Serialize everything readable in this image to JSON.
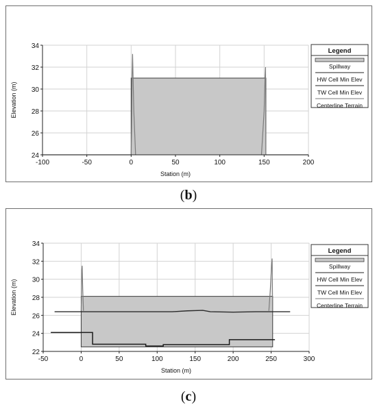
{
  "captions": {
    "b_letter": "b",
    "c_letter": "c"
  },
  "chart_data": [
    {
      "id": "b",
      "type": "line",
      "xlabel": "Station (m)",
      "ylabel": "Elevation (m)",
      "xlim": [
        -100,
        200
      ],
      "ylim": [
        24,
        34
      ],
      "xticks": [
        -100,
        -50,
        0,
        50,
        100,
        150,
        200
      ],
      "yticks": [
        24,
        26,
        28,
        30,
        32,
        34
      ],
      "grid": true,
      "legend": {
        "title": "Legend",
        "placement": "right",
        "entries": [
          "Spillway",
          "HW Cell Min Elev",
          "TW Cell Min Elev",
          "Centerline Terrain"
        ]
      },
      "spillway_polygon": [
        [
          0,
          24
        ],
        [
          0,
          31
        ],
        [
          152,
          31
        ],
        [
          152,
          24
        ]
      ],
      "series": [
        {
          "name": "Centerline Terrain",
          "x": [
            -100,
            0,
            0.5,
            1,
            1.6,
            3,
            5
          ],
          "y": [
            24,
            24,
            26.5,
            31,
            33.2,
            28,
            24
          ]
        },
        {
          "name": "Centerline Terrain",
          "x": [
            147,
            150,
            151,
            151.6,
            152,
            200
          ],
          "y": [
            24,
            28,
            31,
            32,
            24,
            24
          ]
        }
      ]
    },
    {
      "id": "c",
      "type": "line",
      "xlabel": "Station (m)",
      "ylabel": "Elevation (m)",
      "xlim": [
        -50,
        300
      ],
      "ylim": [
        22,
        34
      ],
      "xticks": [
        -50,
        0,
        50,
        100,
        150,
        200,
        250,
        300
      ],
      "yticks": [
        22,
        24,
        26,
        28,
        30,
        32,
        34
      ],
      "grid": true,
      "legend": {
        "title": "Legend",
        "placement": "right",
        "entries": [
          "Spillway",
          "HW Cell Min Elev",
          "TW Cell Min Elev",
          "Centerline Terrain"
        ]
      },
      "spillway_polygon": [
        [
          0,
          22.5
        ],
        [
          0,
          28.1
        ],
        [
          252,
          28.1
        ],
        [
          252,
          22.5
        ]
      ],
      "series": [
        {
          "name": "HW Cell Min Elev",
          "x": [
            -35,
            120,
            140,
            160,
            170,
            200,
            230,
            250,
            275
          ],
          "y": [
            26.4,
            26.4,
            26.5,
            26.55,
            26.4,
            26.35,
            26.4,
            26.4,
            26.4
          ]
        },
        {
          "name": "TW Cell Min Elev",
          "x": [
            -40,
            15,
            15,
            85,
            85,
            88,
            108,
            108,
            195,
            195,
            255
          ],
          "y": [
            24.1,
            24.1,
            22.8,
            22.8,
            22.6,
            22.6,
            22.6,
            22.75,
            22.75,
            23.3,
            23.3
          ]
        },
        {
          "name": "Centerline Terrain",
          "x": [
            0,
            0.4,
            0.8,
            1.3,
            2,
            3
          ],
          "y": [
            26.5,
            28.3,
            31,
            31.5,
            29,
            26.5
          ]
        },
        {
          "name": "Centerline Terrain",
          "x": [
            247,
            249,
            250.5,
            251.3,
            252
          ],
          "y": [
            26.5,
            29,
            31.5,
            32.3,
            26.5
          ]
        }
      ]
    }
  ],
  "colors": {
    "spillway_fill": "#c8c8c8",
    "spillway_stroke": "#3a3a3a",
    "terrain": "#7a7a7a",
    "hw_line": "#2a2a2a",
    "tw_line": "#1a1a1a",
    "grid": "#d2d2d2"
  }
}
